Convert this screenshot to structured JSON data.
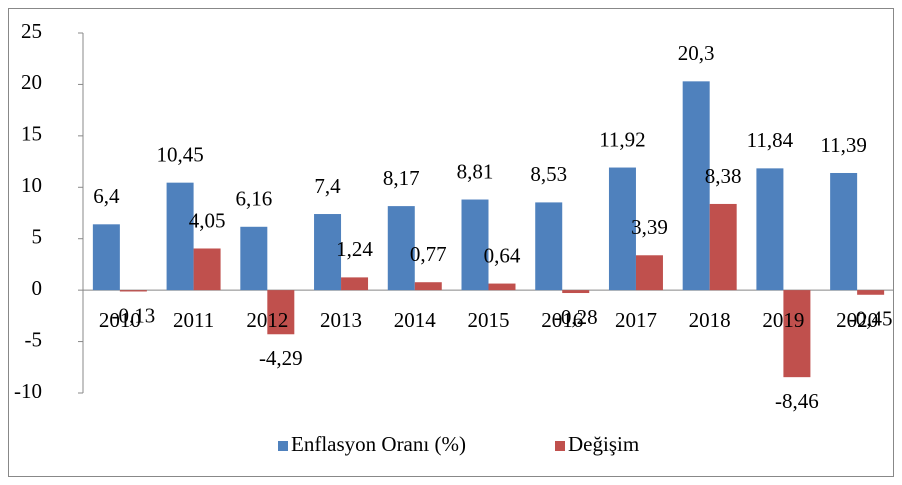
{
  "chart_data": {
    "type": "bar",
    "categories": [
      "2010",
      "2011",
      "2012",
      "2013",
      "2014",
      "2015",
      "2016",
      "2017",
      "2018",
      "2019",
      "2020"
    ],
    "series": [
      {
        "name": "Enflasyon Oranı (%)",
        "color": "#4f81bd",
        "values": [
          6.4,
          10.45,
          6.16,
          7.4,
          8.17,
          8.81,
          8.53,
          11.92,
          20.3,
          11.84,
          11.39
        ],
        "value_labels": [
          "6,4",
          "10,45",
          "6,16",
          "7,4",
          "8,17",
          "8,81",
          "8,53",
          "11,92",
          "20,3",
          "11,84",
          "11,39"
        ]
      },
      {
        "name": "Değişim",
        "color": "#c0504d",
        "values": [
          -0.13,
          4.05,
          -4.29,
          1.24,
          0.77,
          0.64,
          -0.28,
          3.39,
          8.38,
          -8.46,
          -0.45
        ],
        "value_labels": [
          "-0,13",
          "4,05",
          "-4,29",
          "1,24",
          "0,77",
          "0,64",
          "-0,28",
          "3,39",
          "8,38",
          "-8,46",
          "-0,45"
        ]
      }
    ],
    "ylim": [
      -10,
      25
    ],
    "yticks": [
      -10,
      -5,
      0,
      5,
      10,
      15,
      20,
      25
    ],
    "grid": false,
    "legend": "bottom"
  }
}
